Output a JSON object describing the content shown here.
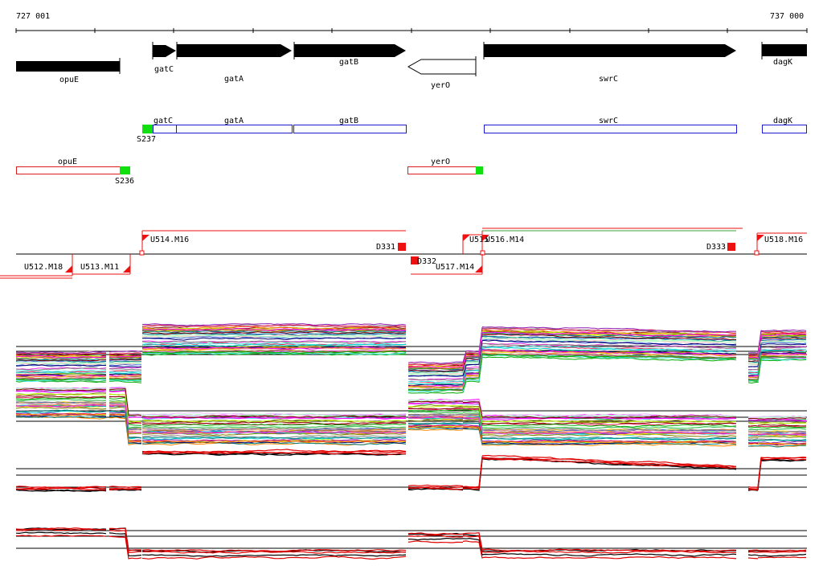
{
  "ruler": {
    "start_label": "727 001",
    "end_label": "737 000"
  },
  "genes": [
    {
      "id": "opuE",
      "label": "opuE",
      "strand": "none"
    },
    {
      "id": "gatC",
      "label": "gatC",
      "strand": "+"
    },
    {
      "id": "gatA",
      "label": "gatA",
      "strand": "+"
    },
    {
      "id": "gatB",
      "label": "gatB",
      "strand": "+"
    },
    {
      "id": "yerO",
      "label": "yerO",
      "strand": "-"
    },
    {
      "id": "swrC",
      "label": "swrC",
      "strand": "+"
    },
    {
      "id": "dagK",
      "label": "dagK",
      "strand": "+"
    }
  ],
  "transcripts_plus": [
    {
      "id": "gatC",
      "label": "gatC"
    },
    {
      "id": "gatA",
      "label": "gatA"
    },
    {
      "id": "gatB",
      "label": "gatB"
    },
    {
      "id": "swrC",
      "label": "swrC"
    },
    {
      "id": "dagK",
      "label": "dagK"
    }
  ],
  "transcripts_minus": [
    {
      "id": "opuE",
      "label": "opuE"
    },
    {
      "id": "yerO",
      "label": "yerO"
    }
  ],
  "sites": [
    {
      "id": "S237",
      "label": "S237"
    },
    {
      "id": "S236",
      "label": "S236"
    }
  ],
  "segments": [
    {
      "id": "U514.M16",
      "label": "U514.M16"
    },
    {
      "id": "D331",
      "label": "D331"
    },
    {
      "id": "U515",
      "label": "U515"
    },
    {
      "id": "U516.M14",
      "label": "U516.M14"
    },
    {
      "id": "D333",
      "label": "D333"
    },
    {
      "id": "U518.M16",
      "label": "U518.M16"
    },
    {
      "id": "U512.M18",
      "label": "U512.M18"
    },
    {
      "id": "U513.M11",
      "label": "U513.M11"
    },
    {
      "id": "D332",
      "label": "D332"
    },
    {
      "id": "U517.M14",
      "label": "U517.M14"
    }
  ],
  "colors": {
    "gene": "#000000",
    "plus_transcript": "#1a1ad0",
    "minus_transcript": "#d81e1e",
    "site": "#10e010",
    "segment": "#ee1111",
    "profile_colors": [
      "#e6194b",
      "#3cb44b",
      "#ffe119",
      "#4363d8",
      "#f58231",
      "#911eb4",
      "#46f0f0",
      "#f032e6",
      "#bcf60c",
      "#fabebe",
      "#008080",
      "#e6beff",
      "#9a6324",
      "#800000",
      "#aaffc3",
      "#808000",
      "#000075",
      "#808080",
      "#ff00ff",
      "#00aa00",
      "#00cccc",
      "#ff8800"
    ]
  }
}
